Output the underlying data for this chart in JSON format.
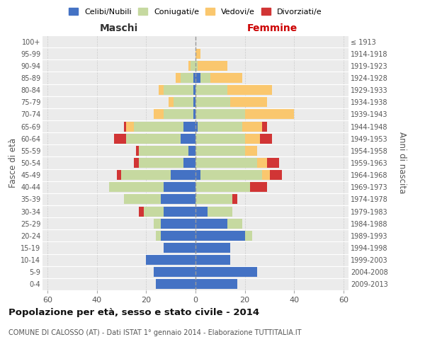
{
  "age_groups": [
    "0-4",
    "5-9",
    "10-14",
    "15-19",
    "20-24",
    "25-29",
    "30-34",
    "35-39",
    "40-44",
    "45-49",
    "50-54",
    "55-59",
    "60-64",
    "65-69",
    "70-74",
    "75-79",
    "80-84",
    "85-89",
    "90-94",
    "95-99",
    "100+"
  ],
  "birth_years": [
    "2009-2013",
    "2004-2008",
    "1999-2003",
    "1994-1998",
    "1989-1993",
    "1984-1988",
    "1979-1983",
    "1974-1978",
    "1969-1973",
    "1964-1968",
    "1959-1963",
    "1954-1958",
    "1949-1953",
    "1944-1948",
    "1939-1943",
    "1934-1938",
    "1929-1933",
    "1924-1928",
    "1919-1923",
    "1914-1918",
    "≤ 1913"
  ],
  "maschi": {
    "celibi": [
      16,
      17,
      20,
      13,
      14,
      14,
      13,
      14,
      13,
      10,
      5,
      3,
      6,
      5,
      1,
      1,
      1,
      1,
      0,
      0,
      0
    ],
    "coniugati": [
      0,
      0,
      0,
      0,
      2,
      3,
      8,
      15,
      22,
      20,
      18,
      20,
      22,
      20,
      12,
      8,
      12,
      5,
      2,
      0,
      0
    ],
    "vedovi": [
      0,
      0,
      0,
      0,
      0,
      0,
      0,
      0,
      0,
      0,
      0,
      0,
      0,
      3,
      4,
      2,
      2,
      2,
      1,
      0,
      0
    ],
    "divorziati": [
      0,
      0,
      0,
      0,
      0,
      0,
      2,
      0,
      0,
      2,
      2,
      1,
      5,
      1,
      0,
      0,
      0,
      0,
      0,
      0,
      0
    ]
  },
  "femmine": {
    "nubili": [
      17,
      25,
      14,
      14,
      20,
      13,
      5,
      0,
      0,
      2,
      0,
      0,
      0,
      1,
      0,
      0,
      0,
      2,
      0,
      0,
      0
    ],
    "coniugate": [
      0,
      0,
      0,
      0,
      3,
      6,
      10,
      15,
      22,
      25,
      25,
      20,
      20,
      18,
      20,
      14,
      13,
      4,
      1,
      0,
      0
    ],
    "vedove": [
      0,
      0,
      0,
      0,
      0,
      0,
      0,
      0,
      0,
      3,
      4,
      5,
      6,
      8,
      20,
      15,
      18,
      13,
      12,
      2,
      0
    ],
    "divorziate": [
      0,
      0,
      0,
      0,
      0,
      0,
      0,
      2,
      7,
      5,
      5,
      0,
      5,
      2,
      0,
      0,
      0,
      0,
      0,
      0,
      0
    ]
  },
  "colors": {
    "celibi": "#4472c4",
    "coniugati": "#c6d9a0",
    "vedovi": "#fac76e",
    "divorziati": "#d13535"
  },
  "xlim": 62,
  "title": "Popolazione per età, sesso e stato civile - 2014",
  "subtitle": "COMUNE DI CALOSSO (AT) - Dati ISTAT 1° gennaio 2014 - Elaborazione TUTTITALIA.IT",
  "ylabel_left": "Fasce di età",
  "ylabel_right": "Anni di nascita",
  "xlabel_left": "Maschi",
  "xlabel_right": "Femmine",
  "bg_color": "#ebebeb",
  "grid_color": "#ffffff"
}
